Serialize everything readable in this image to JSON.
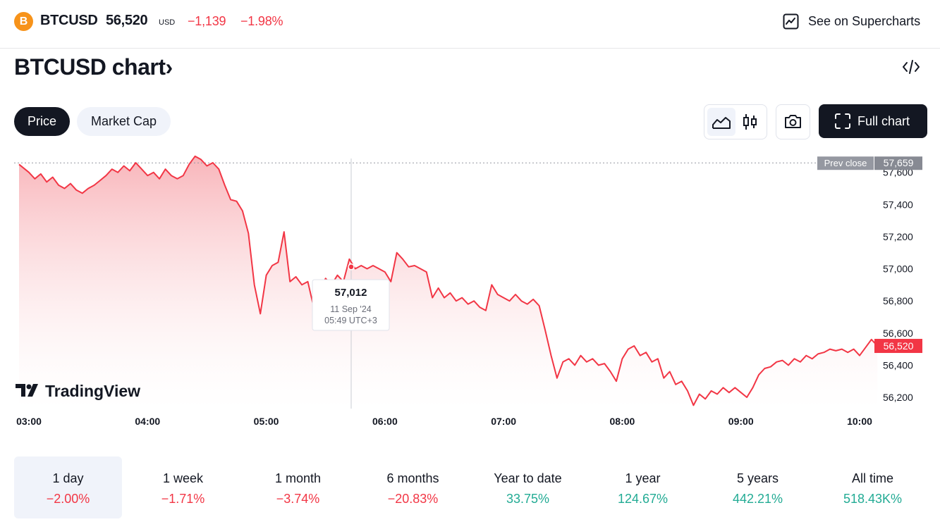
{
  "header": {
    "coin_icon": "B",
    "symbol": "BTCUSD",
    "price": "56,520",
    "currency": "USD",
    "change": "−1,139",
    "change_pct": "−1.98%",
    "supercharts_label": "See on Supercharts",
    "supercharts_icon": "chart-line-icon"
  },
  "title": "BTCUSD chart",
  "title_chevron": "›",
  "embed_icon": "code-icon",
  "tabs": [
    {
      "label": "Price",
      "active": true
    },
    {
      "label": "Market Cap",
      "active": false
    }
  ],
  "toolbar": {
    "area_icon": "area-chart-icon",
    "candles_icon": "candlestick-icon",
    "camera_icon": "camera-icon",
    "full_label": "Full chart"
  },
  "chart_data": {
    "type": "area",
    "x_ticks": [
      "03:00",
      "04:00",
      "05:00",
      "06:00",
      "07:00",
      "08:00",
      "09:00",
      "10:00"
    ],
    "y_ticks": [
      "57,600",
      "57,400",
      "57,200",
      "57,000",
      "56,800",
      "56,600",
      "56,400",
      "56,200"
    ],
    "ylim": [
      56130,
      57730
    ],
    "prev_close_label": "Prev close",
    "prev_close_value": "57,659",
    "prev_close": 57659,
    "last_value_label": "56,520",
    "last_value": 56520,
    "tooltip": {
      "price": "57,012",
      "date": "11 Sep '24",
      "time": "05:49 UTC+3",
      "time_value": "05:49",
      "value": 57012
    },
    "series": [
      {
        "values": [
          [
            "02:55",
            57650
          ],
          [
            "03:00",
            57600
          ],
          [
            "03:03",
            57560
          ],
          [
            "03:06",
            57590
          ],
          [
            "03:09",
            57540
          ],
          [
            "03:12",
            57570
          ],
          [
            "03:15",
            57520
          ],
          [
            "03:18",
            57500
          ],
          [
            "03:21",
            57530
          ],
          [
            "03:24",
            57490
          ],
          [
            "03:27",
            57470
          ],
          [
            "03:30",
            57500
          ],
          [
            "03:33",
            57520
          ],
          [
            "03:36",
            57550
          ],
          [
            "03:39",
            57580
          ],
          [
            "03:42",
            57620
          ],
          [
            "03:45",
            57600
          ],
          [
            "03:48",
            57640
          ],
          [
            "03:51",
            57610
          ],
          [
            "03:54",
            57660
          ],
          [
            "03:57",
            57620
          ],
          [
            "04:00",
            57580
          ],
          [
            "04:03",
            57600
          ],
          [
            "04:06",
            57560
          ],
          [
            "04:09",
            57620
          ],
          [
            "04:12",
            57580
          ],
          [
            "04:15",
            57560
          ],
          [
            "04:18",
            57580
          ],
          [
            "04:21",
            57650
          ],
          [
            "04:24",
            57700
          ],
          [
            "04:27",
            57680
          ],
          [
            "04:30",
            57640
          ],
          [
            "04:33",
            57660
          ],
          [
            "04:36",
            57620
          ],
          [
            "04:39",
            57520
          ],
          [
            "04:42",
            57430
          ],
          [
            "04:45",
            57420
          ],
          [
            "04:48",
            57360
          ],
          [
            "04:51",
            57220
          ],
          [
            "04:54",
            56900
          ],
          [
            "04:57",
            56720
          ],
          [
            "05:00",
            56960
          ],
          [
            "05:03",
            57020
          ],
          [
            "05:06",
            57040
          ],
          [
            "05:09",
            57230
          ],
          [
            "05:12",
            56920
          ],
          [
            "05:15",
            56950
          ],
          [
            "05:18",
            56900
          ],
          [
            "05:21",
            56920
          ],
          [
            "05:24",
            56760
          ],
          [
            "05:27",
            56870
          ],
          [
            "05:30",
            56940
          ],
          [
            "05:33",
            56900
          ],
          [
            "05:36",
            56960
          ],
          [
            "05:39",
            56920
          ],
          [
            "05:42",
            57060
          ],
          [
            "05:45",
            57000
          ],
          [
            "05:48",
            57020
          ],
          [
            "05:51",
            57000
          ],
          [
            "05:54",
            57020
          ],
          [
            "05:57",
            57000
          ],
          [
            "06:00",
            56980
          ],
          [
            "06:03",
            56920
          ],
          [
            "06:06",
            57100
          ],
          [
            "06:09",
            57060
          ],
          [
            "06:12",
            57012
          ],
          [
            "06:15",
            57020
          ],
          [
            "06:18",
            57000
          ],
          [
            "06:21",
            56980
          ],
          [
            "06:24",
            56820
          ],
          [
            "06:27",
            56880
          ],
          [
            "06:30",
            56820
          ],
          [
            "06:33",
            56850
          ],
          [
            "06:36",
            56800
          ],
          [
            "06:39",
            56820
          ],
          [
            "06:42",
            56780
          ],
          [
            "06:45",
            56800
          ],
          [
            "06:48",
            56760
          ],
          [
            "06:51",
            56740
          ],
          [
            "06:54",
            56900
          ],
          [
            "06:57",
            56840
          ],
          [
            "07:00",
            56820
          ],
          [
            "07:03",
            56800
          ],
          [
            "07:06",
            56840
          ],
          [
            "07:09",
            56800
          ],
          [
            "07:12",
            56780
          ],
          [
            "07:15",
            56810
          ],
          [
            "07:18",
            56770
          ],
          [
            "07:21",
            56620
          ],
          [
            "07:24",
            56460
          ],
          [
            "07:27",
            56320
          ],
          [
            "07:30",
            56420
          ],
          [
            "07:33",
            56440
          ],
          [
            "07:36",
            56400
          ],
          [
            "07:39",
            56460
          ],
          [
            "07:42",
            56420
          ],
          [
            "07:45",
            56440
          ],
          [
            "07:48",
            56400
          ],
          [
            "07:51",
            56410
          ],
          [
            "07:54",
            56360
          ],
          [
            "07:57",
            56300
          ],
          [
            "08:00",
            56440
          ],
          [
            "08:03",
            56500
          ],
          [
            "08:06",
            56520
          ],
          [
            "08:09",
            56460
          ],
          [
            "08:12",
            56480
          ],
          [
            "08:15",
            56420
          ],
          [
            "08:18",
            56440
          ],
          [
            "08:21",
            56320
          ],
          [
            "08:24",
            56360
          ],
          [
            "08:27",
            56280
          ],
          [
            "08:30",
            56300
          ],
          [
            "08:33",
            56240
          ],
          [
            "08:36",
            56150
          ],
          [
            "08:39",
            56220
          ],
          [
            "08:42",
            56190
          ],
          [
            "08:45",
            56240
          ],
          [
            "08:48",
            56220
          ],
          [
            "08:51",
            56260
          ],
          [
            "08:54",
            56230
          ],
          [
            "08:57",
            56260
          ],
          [
            "09:00",
            56230
          ],
          [
            "09:03",
            56200
          ],
          [
            "09:06",
            56260
          ],
          [
            "09:09",
            56340
          ],
          [
            "09:12",
            56380
          ],
          [
            "09:15",
            56390
          ],
          [
            "09:18",
            56420
          ],
          [
            "09:21",
            56430
          ],
          [
            "09:24",
            56400
          ],
          [
            "09:27",
            56440
          ],
          [
            "09:30",
            56420
          ],
          [
            "09:33",
            56460
          ],
          [
            "09:36",
            56440
          ],
          [
            "09:39",
            56470
          ],
          [
            "09:42",
            56480
          ],
          [
            "09:45",
            56500
          ],
          [
            "09:48",
            56490
          ],
          [
            "09:51",
            56500
          ],
          [
            "09:54",
            56480
          ],
          [
            "09:57",
            56500
          ],
          [
            "10:00",
            56460
          ],
          [
            "10:03",
            56510
          ],
          [
            "10:06",
            56560
          ],
          [
            "10:09",
            56520
          ]
        ]
      }
    ],
    "colors": {
      "line": "#f23645",
      "area_top": "#f7a8ae",
      "area_bottom": "#ffffff"
    },
    "watermark": "TradingView"
  },
  "periods": [
    {
      "label": "1 day",
      "value": "−2.00%",
      "trend": "neg",
      "selected": true
    },
    {
      "label": "1 week",
      "value": "−1.71%",
      "trend": "neg",
      "selected": false
    },
    {
      "label": "1 month",
      "value": "−3.74%",
      "trend": "neg",
      "selected": false
    },
    {
      "label": "6 months",
      "value": "−20.83%",
      "trend": "neg",
      "selected": false
    },
    {
      "label": "Year to date",
      "value": "33.75%",
      "trend": "pos",
      "selected": false
    },
    {
      "label": "1 year",
      "value": "124.67%",
      "trend": "pos",
      "selected": false
    },
    {
      "label": "5 years",
      "value": "442.21%",
      "trend": "pos",
      "selected": false
    },
    {
      "label": "All time",
      "value": "518.43K%",
      "trend": "pos",
      "selected": false
    }
  ]
}
